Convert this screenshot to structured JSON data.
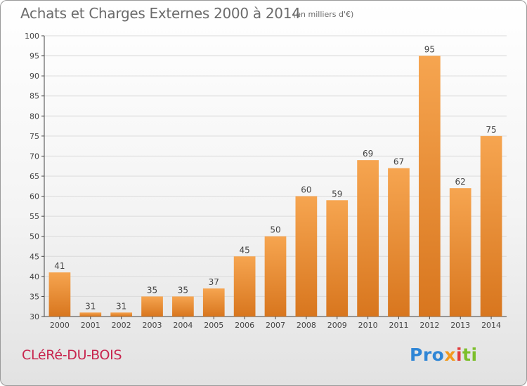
{
  "header": {
    "title": "Achats et Charges Externes 2000 à 2014",
    "unit": "(en milliers d'€)"
  },
  "footer": {
    "commune": "CLéRé-DU-BOIS",
    "logo": "Proxiti",
    "logo_parts": [
      "Pro",
      "x",
      "i",
      "ti"
    ]
  },
  "colors": {
    "bar_top": "#f6a550",
    "bar_bottom": "#d8761e",
    "grid": "#dadada",
    "axis": "#444444",
    "commune": "#c8254e"
  },
  "chart_data": {
    "type": "bar",
    "categories": [
      "2000",
      "2001",
      "2002",
      "2003",
      "2004",
      "2005",
      "2006",
      "2007",
      "2008",
      "2009",
      "2010",
      "2011",
      "2012",
      "2013",
      "2014"
    ],
    "values": [
      41,
      31,
      31,
      35,
      35,
      37,
      45,
      50,
      60,
      59,
      69,
      67,
      95,
      62,
      75
    ],
    "data_labels": [
      "41",
      "31",
      "31",
      "35",
      "35",
      "37",
      "45",
      "50",
      "60",
      "59",
      "69",
      "67",
      "95",
      "62",
      "75"
    ],
    "ylim": [
      30,
      100
    ],
    "yticks": [
      30,
      35,
      40,
      45,
      50,
      55,
      60,
      65,
      70,
      75,
      80,
      85,
      90,
      95,
      100
    ],
    "grid": true,
    "legend": "none"
  }
}
